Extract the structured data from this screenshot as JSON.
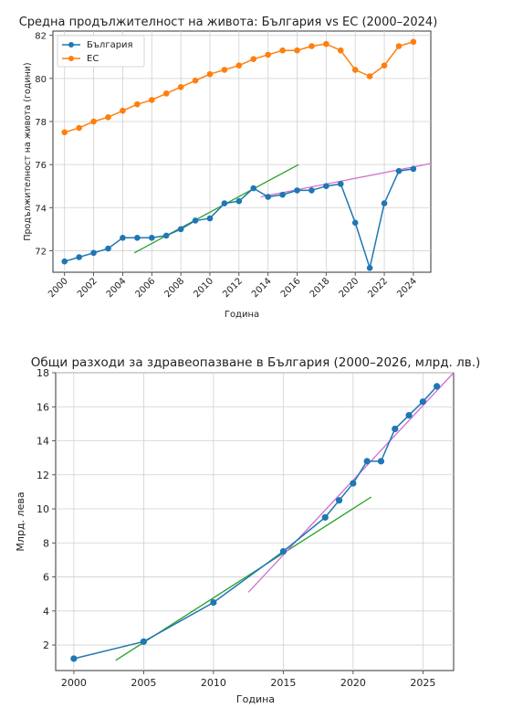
{
  "chart_data": [
    {
      "type": "line",
      "title": "Средна продължителност на живота: България vs ЕС (2000–2024)",
      "xlabel": "Година",
      "ylabel": "Продължителност на живота (години)",
      "xlim": [
        1999.2,
        2025.2
      ],
      "ylim": [
        71.0,
        82.2
      ],
      "xticks": [
        2000,
        2002,
        2004,
        2006,
        2008,
        2010,
        2012,
        2014,
        2016,
        2018,
        2020,
        2022,
        2024
      ],
      "yticks": [
        72,
        74,
        76,
        78,
        80,
        82
      ],
      "grid": true,
      "legend": "top-left",
      "series": [
        {
          "name": "България",
          "color": "#1f77b4",
          "x": [
            2000,
            2001,
            2002,
            2003,
            2004,
            2005,
            2006,
            2007,
            2008,
            2009,
            2010,
            2011,
            2012,
            2013,
            2014,
            2015,
            2016,
            2017,
            2018,
            2019,
            2020,
            2021,
            2022,
            2023,
            2024
          ],
          "y": [
            71.5,
            71.7,
            71.9,
            72.1,
            72.6,
            72.6,
            72.6,
            72.7,
            73.0,
            73.4,
            73.5,
            74.2,
            74.3,
            74.9,
            74.5,
            74.6,
            74.8,
            74.8,
            75.0,
            75.1,
            73.3,
            71.2,
            74.2,
            75.7,
            75.8
          ]
        },
        {
          "name": "ЕС",
          "color": "#ff7f0e",
          "x": [
            2000,
            2001,
            2002,
            2003,
            2004,
            2005,
            2006,
            2007,
            2008,
            2009,
            2010,
            2011,
            2012,
            2013,
            2014,
            2015,
            2016,
            2017,
            2018,
            2019,
            2020,
            2021,
            2022,
            2023,
            2024
          ],
          "y": [
            77.5,
            77.7,
            78.0,
            78.2,
            78.5,
            78.8,
            79.0,
            79.3,
            79.6,
            79.9,
            80.2,
            80.4,
            80.6,
            80.9,
            81.1,
            81.3,
            81.3,
            81.5,
            81.6,
            81.3,
            80.4,
            80.1,
            80.6,
            81.5,
            81.7
          ]
        }
      ],
      "trendlines": [
        {
          "color": "#2ca02c",
          "x": [
            2004.8,
            2016.1
          ],
          "y": [
            71.9,
            76.0
          ]
        },
        {
          "color": "#d070d0",
          "x": [
            2013.5,
            2025.2
          ],
          "y": [
            74.5,
            76.05
          ]
        }
      ]
    },
    {
      "type": "line",
      "title": "Общи разходи за здравеопазване в България (2000–2026, млрд. лв.)",
      "xlabel": "Година",
      "ylabel": "Млрд. лева",
      "xlim": [
        1998.7,
        2027.2
      ],
      "ylim": [
        0.5,
        18.0
      ],
      "xticks": [
        2000,
        2005,
        2010,
        2015,
        2020,
        2025
      ],
      "yticks": [
        2,
        4,
        6,
        8,
        10,
        12,
        14,
        16,
        18
      ],
      "grid": true,
      "series": [
        {
          "color": "#1f77b4",
          "x": [
            2000,
            2005,
            2010,
            2015,
            2018,
            2019,
            2020,
            2021,
            2022,
            2023,
            2024,
            2025,
            2026
          ],
          "y": [
            1.2,
            2.2,
            4.5,
            7.5,
            9.5,
            10.5,
            11.5,
            12.8,
            12.8,
            14.7,
            15.5,
            16.3,
            17.2
          ]
        }
      ],
      "trendlines": [
        {
          "color": "#2ca02c",
          "x": [
            2003.0,
            2021.3
          ],
          "y": [
            1.1,
            10.7
          ]
        },
        {
          "color": "#d070d0",
          "x": [
            2012.5,
            2027.2
          ],
          "y": [
            5.1,
            18.0
          ]
        }
      ]
    }
  ]
}
